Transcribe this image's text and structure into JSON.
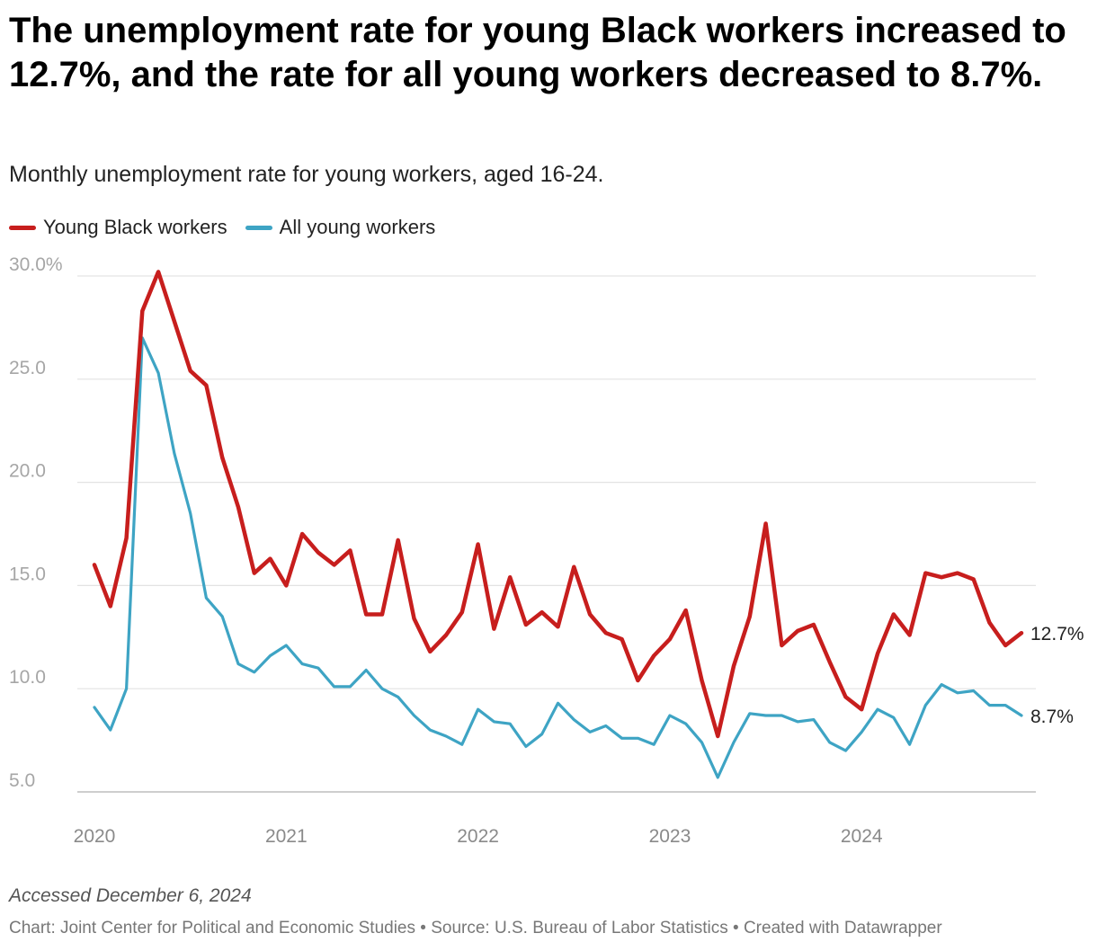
{
  "title": "The unemployment rate for young Black workers increased to 12.7%, and the rate for all young workers decreased to 8.7%.",
  "subtitle": "Monthly unemployment rate for young workers, aged 16-24.",
  "notes": "Accessed December 6, 2024",
  "footer": "Chart: Joint Center for Political and Economic Studies • Source: U.S. Bureau of Labor Statistics • Created with Datawrapper",
  "chart_data": {
    "type": "line",
    "title": "The unemployment rate for young Black workers increased to 12.7%, and the rate for all young workers decreased to 8.7%.",
    "xlabel": "",
    "ylabel": "",
    "x_start": "2020-01",
    "x_ticks": [
      "2020",
      "2021",
      "2022",
      "2023",
      "2024"
    ],
    "y_ticks": [
      "30.0%",
      "25.0",
      "20.0",
      "15.0",
      "10.0",
      "5.0"
    ],
    "y_tick_values": [
      30,
      25,
      20,
      15,
      10,
      5
    ],
    "ylim": [
      5,
      30
    ],
    "legend_position": "top-left",
    "series": [
      {
        "name": "Young Black workers",
        "color": "#c71e1d",
        "end_label": "12.7%",
        "values": [
          16.0,
          14.0,
          17.3,
          28.3,
          30.2,
          27.8,
          25.4,
          24.7,
          21.2,
          18.8,
          15.6,
          16.3,
          15.0,
          17.5,
          16.6,
          16.0,
          16.7,
          13.6,
          13.6,
          17.2,
          13.4,
          11.8,
          12.6,
          13.7,
          17.0,
          12.9,
          15.4,
          13.1,
          13.7,
          13.0,
          15.9,
          13.6,
          12.7,
          12.4,
          10.4,
          11.6,
          12.4,
          13.8,
          10.4,
          7.7,
          11.1,
          13.5,
          18.0,
          12.1,
          12.8,
          13.1,
          11.3,
          9.6,
          9.0,
          11.7,
          13.6,
          12.6,
          15.6,
          15.4,
          15.6,
          15.3,
          13.2,
          12.1,
          12.7
        ]
      },
      {
        "name": "All young workers",
        "color": "#3ea4c4",
        "end_label": "8.7%",
        "values": [
          9.1,
          8.0,
          10.0,
          27.0,
          25.3,
          21.4,
          18.5,
          14.4,
          13.5,
          11.2,
          10.8,
          11.6,
          12.1,
          11.2,
          11.0,
          10.1,
          10.1,
          10.9,
          10.0,
          9.6,
          8.7,
          8.0,
          7.7,
          7.3,
          9.0,
          8.4,
          8.3,
          7.2,
          7.8,
          9.3,
          8.5,
          7.9,
          8.2,
          7.6,
          7.6,
          7.3,
          8.7,
          8.3,
          7.4,
          5.7,
          7.4,
          8.8,
          8.7,
          8.7,
          8.4,
          8.5,
          7.4,
          7.0,
          7.9,
          9.0,
          8.6,
          7.3,
          9.2,
          10.2,
          9.8,
          9.9,
          9.2,
          9.2,
          8.7
        ]
      }
    ]
  }
}
